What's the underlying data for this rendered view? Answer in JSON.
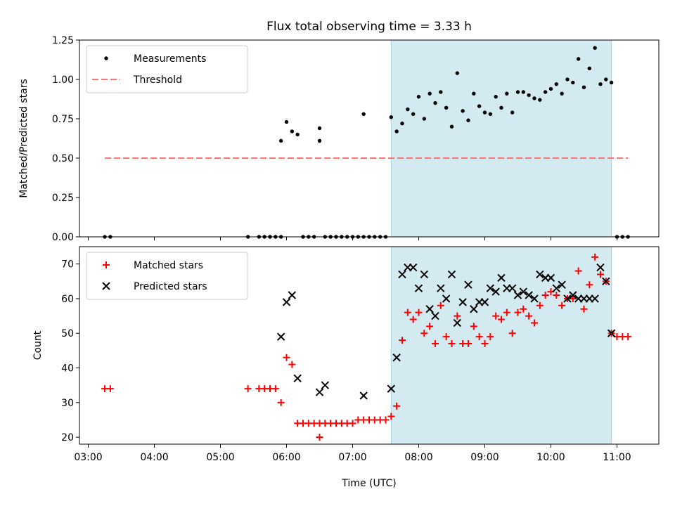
{
  "title": "Flux total observing time = 3.33 h",
  "colors": {
    "measurement": "#000000",
    "threshold": "#ff7070",
    "matched": "#ff0000",
    "predicted": "#000000",
    "span": "#d3eaf1",
    "span_edge": "#a9d3e0"
  },
  "chart_data": [
    {
      "type": "scatter",
      "ylabel": "Matched/Predicted stars",
      "xlim": [
        "02:52",
        "11:38"
      ],
      "ylim": [
        0,
        1.25
      ],
      "yticks": [
        "0.00",
        "0.25",
        "0.50",
        "0.75",
        "1.00",
        "1.25"
      ],
      "ytick_values": [
        0,
        0.25,
        0.5,
        0.75,
        1.0,
        1.25
      ],
      "legend": "top-left",
      "highlight_span": [
        "07:35",
        "10:55"
      ],
      "threshold": {
        "name": "Threshold",
        "value": 0.5,
        "x_range": [
          "03:15",
          "11:10"
        ]
      },
      "series": [
        {
          "name": "Measurements",
          "x": [
            "03:15",
            "03:20",
            "05:25",
            "05:35",
            "05:40",
            "05:45",
            "05:50",
            "05:55",
            "05:55",
            "06:00",
            "06:05",
            "06:10",
            "06:15",
            "06:20",
            "06:25",
            "06:30",
            "06:30",
            "06:35",
            "06:40",
            "06:45",
            "06:50",
            "06:55",
            "07:00",
            "07:05",
            "07:10",
            "07:10",
            "07:15",
            "07:20",
            "07:25",
            "07:30",
            "07:35",
            "07:40",
            "07:45",
            "07:50",
            "07:55",
            "08:00",
            "08:05",
            "08:10",
            "08:15",
            "08:20",
            "08:25",
            "08:30",
            "08:35",
            "08:40",
            "08:45",
            "08:50",
            "08:55",
            "09:00",
            "09:05",
            "09:10",
            "09:15",
            "09:20",
            "09:25",
            "09:30",
            "09:35",
            "09:40",
            "09:45",
            "09:50",
            "09:55",
            "10:00",
            "10:05",
            "10:10",
            "10:15",
            "10:20",
            "10:25",
            "10:30",
            "10:35",
            "10:40",
            "10:45",
            "10:50",
            "10:55",
            "11:00",
            "11:05",
            "11:10"
          ],
          "y": [
            0,
            0,
            0,
            0,
            0,
            0,
            0,
            0,
            0.61,
            0.73,
            0.67,
            0.65,
            0,
            0,
            0,
            0.61,
            0.69,
            0,
            0,
            0,
            0,
            0,
            0,
            0,
            0,
            0.78,
            0,
            0,
            0,
            0,
            0.76,
            0.67,
            0.72,
            0.81,
            0.78,
            0.89,
            0.75,
            0.91,
            0.85,
            0.92,
            0.82,
            0.7,
            1.04,
            0.8,
            0.74,
            0.91,
            0.83,
            0.79,
            0.78,
            0.89,
            0.82,
            0.91,
            0.79,
            0.92,
            0.92,
            0.9,
            0.88,
            0.87,
            0.92,
            0.94,
            0.97,
            0.91,
            1.0,
            0.98,
            1.13,
            0.95,
            1.07,
            1.2,
            0.97,
            1.0,
            0.98,
            0,
            0,
            0
          ]
        }
      ]
    },
    {
      "type": "scatter",
      "xlabel": "Time (UTC)",
      "ylabel": "Count",
      "xlim": [
        "02:52",
        "11:38"
      ],
      "ylim": [
        18,
        75
      ],
      "xticks": [
        "03:00",
        "04:00",
        "05:00",
        "06:00",
        "07:00",
        "08:00",
        "09:00",
        "10:00",
        "11:00"
      ],
      "yticks": [
        "20",
        "30",
        "40",
        "50",
        "60",
        "70"
      ],
      "ytick_values": [
        20,
        30,
        40,
        50,
        60,
        70
      ],
      "legend": "top-left",
      "highlight_span": [
        "07:35",
        "10:55"
      ],
      "series": [
        {
          "name": "Matched stars",
          "marker": "plus",
          "x": [
            "03:15",
            "03:20",
            "05:25",
            "05:35",
            "05:40",
            "05:45",
            "05:50",
            "05:55",
            "06:00",
            "06:05",
            "06:10",
            "06:15",
            "06:20",
            "06:25",
            "06:30",
            "06:35",
            "06:40",
            "06:45",
            "06:50",
            "06:55",
            "07:00",
            "07:05",
            "07:10",
            "07:15",
            "07:20",
            "07:25",
            "07:30",
            "07:35",
            "07:40",
            "07:45",
            "07:50",
            "07:55",
            "08:00",
            "08:05",
            "08:10",
            "08:15",
            "08:20",
            "08:25",
            "08:30",
            "08:35",
            "08:40",
            "08:45",
            "08:50",
            "08:55",
            "09:00",
            "09:05",
            "09:10",
            "09:15",
            "09:20",
            "09:25",
            "09:30",
            "09:35",
            "09:40",
            "09:45",
            "09:50",
            "09:55",
            "10:00",
            "10:05",
            "10:10",
            "10:15",
            "10:20",
            "10:25",
            "10:30",
            "10:35",
            "10:40",
            "10:45",
            "10:50",
            "10:55",
            "11:00",
            "11:05",
            "11:10",
            "06:30"
          ],
          "y": [
            34,
            34,
            34,
            34,
            34,
            34,
            34,
            30,
            43,
            41,
            24,
            24,
            24,
            24,
            24,
            24,
            24,
            24,
            24,
            24,
            24,
            25,
            25,
            25,
            25,
            25,
            25,
            26,
            29,
            48,
            56,
            54,
            56,
            50,
            52,
            47,
            58,
            49,
            47,
            55,
            47,
            47,
            52,
            49,
            47,
            49,
            55,
            54,
            56,
            50,
            56,
            57,
            55,
            53,
            58,
            61,
            62,
            61,
            58,
            60,
            60,
            68,
            57,
            64,
            72,
            67,
            65,
            50,
            49,
            49,
            49,
            20
          ]
        },
        {
          "name": "Predicted stars",
          "marker": "x",
          "x": [
            "05:55",
            "06:00",
            "06:05",
            "06:10",
            "06:30",
            "06:35",
            "07:10",
            "07:35",
            "07:40",
            "07:45",
            "07:50",
            "07:55",
            "08:00",
            "08:05",
            "08:10",
            "08:15",
            "08:20",
            "08:25",
            "08:30",
            "08:35",
            "08:40",
            "08:45",
            "08:50",
            "08:55",
            "09:00",
            "09:05",
            "09:10",
            "09:15",
            "09:20",
            "09:25",
            "09:30",
            "09:35",
            "09:40",
            "09:45",
            "09:50",
            "09:55",
            "10:00",
            "10:05",
            "10:10",
            "10:15",
            "10:20",
            "10:25",
            "10:30",
            "10:35",
            "10:40",
            "10:45",
            "10:50",
            "10:55"
          ],
          "y": [
            49,
            59,
            61,
            37,
            33,
            35,
            32,
            34,
            43,
            67,
            69,
            69,
            63,
            67,
            57,
            55,
            63,
            60,
            67,
            53,
            59,
            64,
            57,
            59,
            59,
            63,
            62,
            66,
            63,
            63,
            61,
            62,
            61,
            60,
            67,
            66,
            66,
            63,
            64,
            60,
            61,
            60,
            60,
            60,
            60,
            69,
            65,
            50
          ]
        }
      ]
    }
  ]
}
